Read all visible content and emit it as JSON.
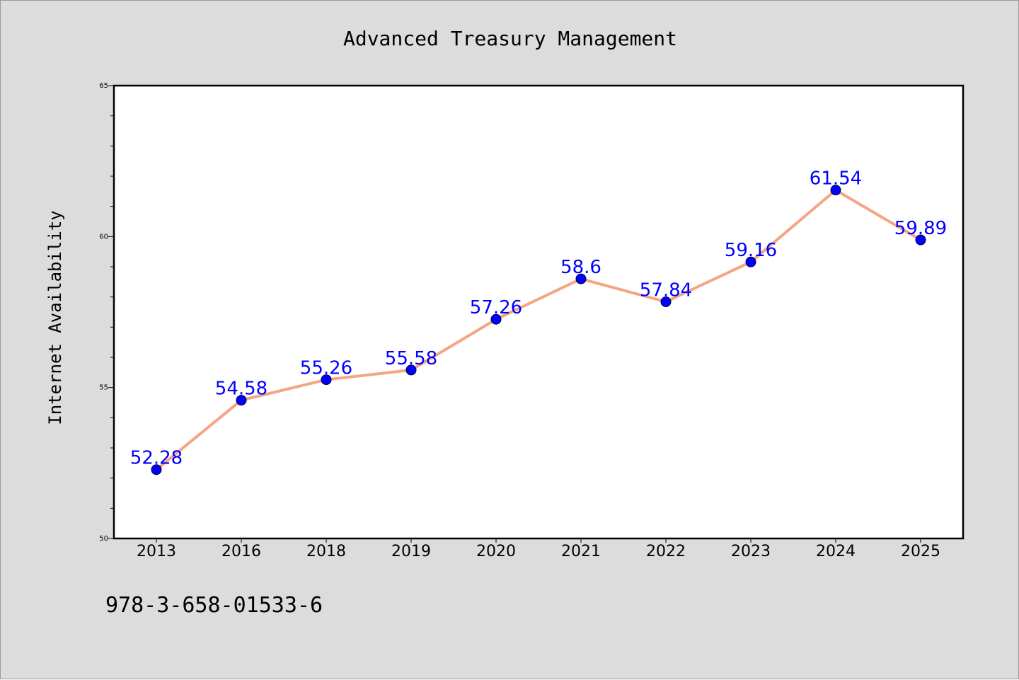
{
  "chart_data": {
    "type": "line",
    "title": "Advanced Treasury Management",
    "xlabel": "",
    "ylabel": "Internet Availability",
    "categories": [
      "2013",
      "2016",
      "2018",
      "2019",
      "2020",
      "2021",
      "2022",
      "2023",
      "2024",
      "2025"
    ],
    "series": [
      {
        "values": [
          52.28,
          54.58,
          55.26,
          55.58,
          57.26,
          58.6,
          57.84,
          59.16,
          61.54,
          59.89
        ]
      }
    ],
    "data_labels": [
      "52.28",
      "54.58",
      "55.26",
      "55.58",
      "57.26",
      "58.6",
      "57.84",
      "59.16",
      "61.54",
      "59.89"
    ],
    "ylim": [
      50,
      65
    ],
    "yticks": [
      "50",
      "55",
      "60",
      "65"
    ],
    "grid": false,
    "colors": {
      "line": "#f4a582",
      "marker": "#0000ff",
      "label": "#0000ff",
      "background": "#dcdcdc",
      "plot_background": "#ffffff"
    }
  },
  "footer_note": "978-3-658-01533-6"
}
